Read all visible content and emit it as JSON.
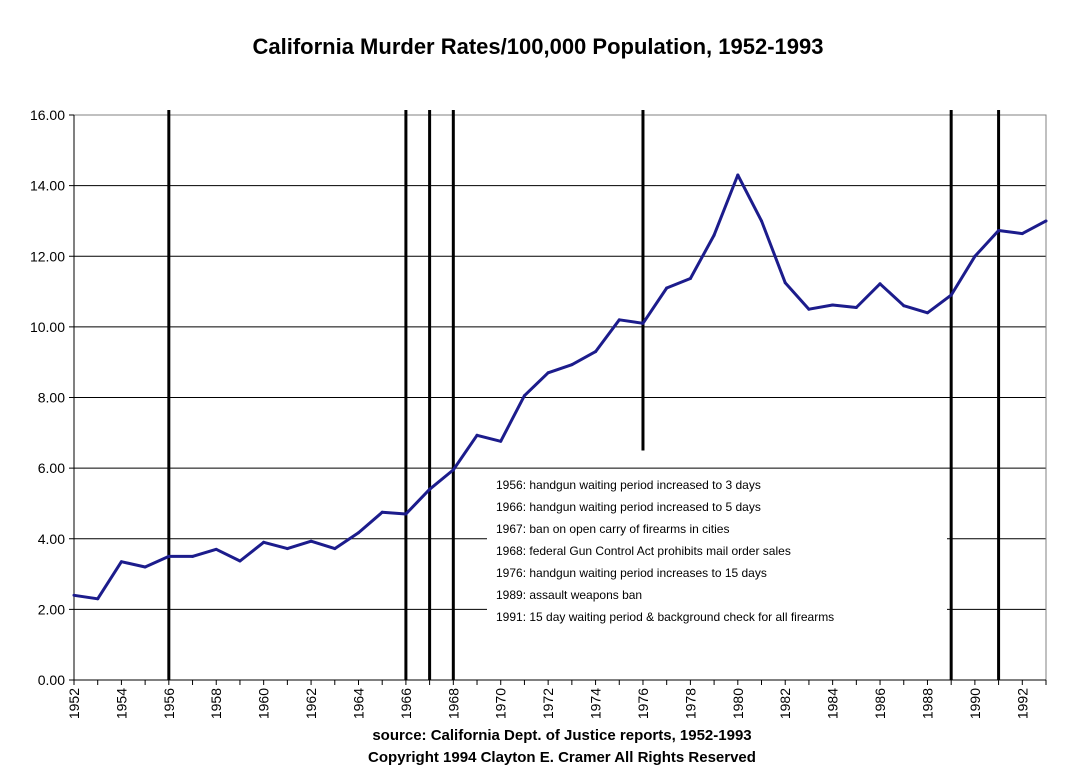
{
  "chart_data": {
    "type": "line",
    "title": "California Murder Rates/100,000 Population, 1952-1993",
    "xlabel": "",
    "ylabel": "",
    "xlim": [
      1952,
      1993
    ],
    "ylim": [
      0,
      16
    ],
    "y_ticks": [
      "0.00",
      "2.00",
      "4.00",
      "6.00",
      "8.00",
      "10.00",
      "12.00",
      "14.00",
      "16.00"
    ],
    "x_ticks": [
      "1952",
      "1954",
      "1956",
      "1958",
      "1960",
      "1962",
      "1964",
      "1966",
      "1968",
      "1970",
      "1972",
      "1974",
      "1976",
      "1978",
      "1980",
      "1982",
      "1984",
      "1986",
      "1988",
      "1990",
      "1992"
    ],
    "grid": true,
    "line_color": "#1c1c8c",
    "series": [
      {
        "x": [
          1952,
          1953,
          1954,
          1955,
          1956,
          1957,
          1958,
          1959,
          1960,
          1961,
          1962,
          1963,
          1964,
          1965,
          1966,
          1967,
          1968,
          1969,
          1970,
          1971,
          1972,
          1973,
          1974,
          1975,
          1976,
          1977,
          1978,
          1979,
          1980,
          1981,
          1982,
          1983,
          1984,
          1985,
          1986,
          1987,
          1988,
          1989,
          1990,
          1991,
          1992,
          1993
        ],
        "values": [
          2.4,
          2.3,
          3.35,
          3.2,
          3.5,
          3.5,
          3.7,
          3.37,
          3.9,
          3.72,
          3.93,
          3.72,
          4.17,
          4.75,
          4.7,
          5.4,
          5.95,
          6.93,
          6.76,
          8.05,
          8.7,
          8.93,
          9.3,
          10.2,
          10.1,
          11.1,
          11.37,
          12.6,
          14.3,
          13.0,
          11.25,
          10.5,
          10.62,
          10.55,
          11.22,
          10.6,
          10.4,
          10.9,
          12.0,
          12.73,
          12.64,
          13.0
        ]
      }
    ],
    "event_lines": [
      {
        "year": 1956,
        "top": 16.0
      },
      {
        "year": 1966,
        "top": 16.0
      },
      {
        "year": 1967,
        "top": 16.0
      },
      {
        "year": 1968,
        "top": 16.0
      },
      {
        "year": 1976,
        "top": 16.0,
        "bottom": 6.5
      },
      {
        "year": 1989,
        "top": 16.0
      },
      {
        "year": 1991,
        "top": 16.0
      }
    ],
    "legend": {
      "placement": "bottom-center",
      "entries": [
        "1956: handgun waiting period increased to 3 days",
        "1966: handgun waiting period increased to 5 days",
        "1967: ban on open carry of firearms in cities",
        "1968: federal Gun Control Act prohibits mail order sales",
        "1976: handgun waiting period increases to 15 days",
        "1989: assault weapons ban",
        "1991: 15 day waiting period & background check for all firearms"
      ]
    },
    "footer": {
      "source": "source: California Dept. of Justice reports, 1952-1993",
      "copyright": "Copyright 1994 Clayton E. Cramer All Rights Reserved"
    }
  }
}
